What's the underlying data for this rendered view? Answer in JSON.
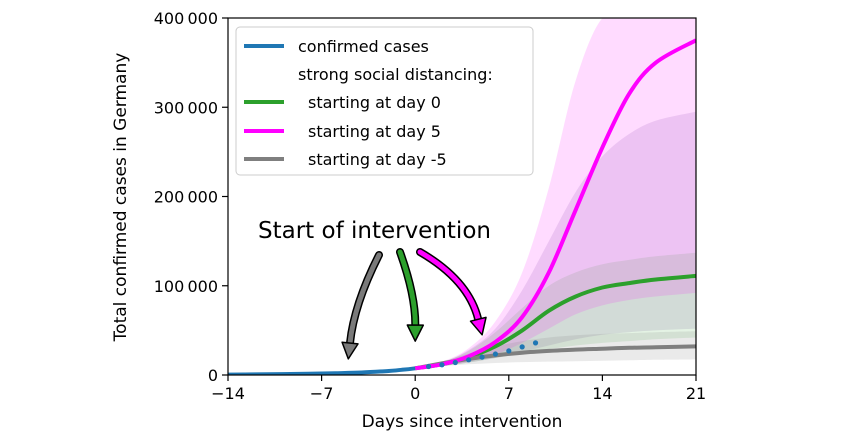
{
  "chart_data": {
    "type": "line",
    "xlabel": "Days since intervention",
    "ylabel": "Total confirmed cases in Germany",
    "xlim": [
      -14,
      21
    ],
    "ylim": [
      0,
      400000
    ],
    "xticks": [
      -14,
      -7,
      0,
      7,
      14,
      21
    ],
    "xtick_labels": [
      "−14",
      "−7",
      "0",
      "7",
      "14",
      "21"
    ],
    "yticks": [
      0,
      100000,
      200000,
      300000,
      400000
    ],
    "ytick_labels": [
      "0",
      "100 000",
      "200 000",
      "300 000",
      "400 000"
    ],
    "grid": false,
    "legend": {
      "placement": "top-left",
      "header": "strong social distancing:"
    },
    "annotation": {
      "text": "Start of intervention",
      "arrows": [
        {
          "color": "#7a7a7a",
          "target": [
            -5,
            18000
          ]
        },
        {
          "color": "#2ca02c",
          "target": [
            0,
            38000
          ]
        },
        {
          "color": "#ff00ff",
          "target": [
            5,
            45000
          ]
        }
      ]
    },
    "series": [
      {
        "name": "confirmed cases",
        "color": "#1f77b4",
        "style": "line+dots",
        "line": {
          "x": [
            -14,
            -12,
            -10,
            -8,
            -6,
            -4,
            -2,
            -1,
            0
          ],
          "y": [
            400,
            700,
            1000,
            1400,
            2000,
            2800,
            4500,
            5800,
            7500
          ]
        },
        "dots": {
          "x": [
            1,
            2,
            3,
            4,
            5,
            6,
            7,
            8,
            9
          ],
          "y": [
            9500,
            11500,
            14000,
            17000,
            20000,
            23500,
            27000,
            31500,
            36000
          ]
        }
      },
      {
        "name": "starting at day 0",
        "color": "#2ca02c",
        "x": [
          0,
          2,
          4,
          6,
          8,
          10,
          12,
          14,
          16,
          18,
          21
        ],
        "y": [
          7500,
          12000,
          20000,
          32000,
          50000,
          72000,
          88000,
          98000,
          103000,
          107000,
          111000
        ],
        "band": {
          "lower": [
            7500,
            10000,
            14000,
            19000,
            24000,
            29000,
            33000,
            36000,
            38000,
            40000,
            42000
          ],
          "upper": [
            7500,
            14000,
            27000,
            48000,
            75000,
            100000,
            115000,
            124000,
            129000,
            133000,
            137000
          ]
        }
      },
      {
        "name": "starting at day 5",
        "color": "#ff00ff",
        "x": [
          0,
          2,
          4,
          6,
          8,
          10,
          12,
          14,
          16,
          18,
          21
        ],
        "y": [
          7500,
          12000,
          21000,
          37000,
          65000,
          115000,
          185000,
          255000,
          315000,
          350000,
          375000
        ],
        "band": {
          "lower": [
            7500,
            10000,
            15000,
            23000,
            36000,
            52000,
            68000,
            78000,
            84000,
            88000,
            92000
          ],
          "upper": [
            7500,
            15000,
            30000,
            60000,
            115000,
            210000,
            330000,
            400000,
            400000,
            400000,
            400000
          ]
        }
      },
      {
        "name": "starting at day -5",
        "color": "#7f7f7f",
        "x": [
          0,
          2,
          4,
          6,
          8,
          10,
          12,
          14,
          16,
          18,
          21
        ],
        "y": [
          7500,
          13000,
          18000,
          22000,
          25000,
          27000,
          28500,
          29500,
          30500,
          31000,
          32000
        ],
        "band": {
          "lower": [
            7500,
            10000,
            12000,
            13500,
            14500,
            15000,
            15500,
            16000,
            16500,
            17000,
            17500
          ],
          "upper": [
            7500,
            15000,
            24000,
            32000,
            38000,
            42000,
            44500,
            46000,
            47000,
            48000,
            49000
          ]
        }
      }
    ],
    "purple_band": {
      "color": "#9c7ab8",
      "x": [
        0,
        2,
        4,
        6,
        8,
        10,
        12,
        14,
        16,
        18,
        21
      ],
      "lower": [
        7500,
        10000,
        14000,
        19000,
        26000,
        33000,
        40000,
        45000,
        48000,
        50000,
        52000
      ],
      "upper": [
        7500,
        14000,
        28000,
        52000,
        95000,
        150000,
        205000,
        245000,
        270000,
        285000,
        295000
      ]
    }
  }
}
